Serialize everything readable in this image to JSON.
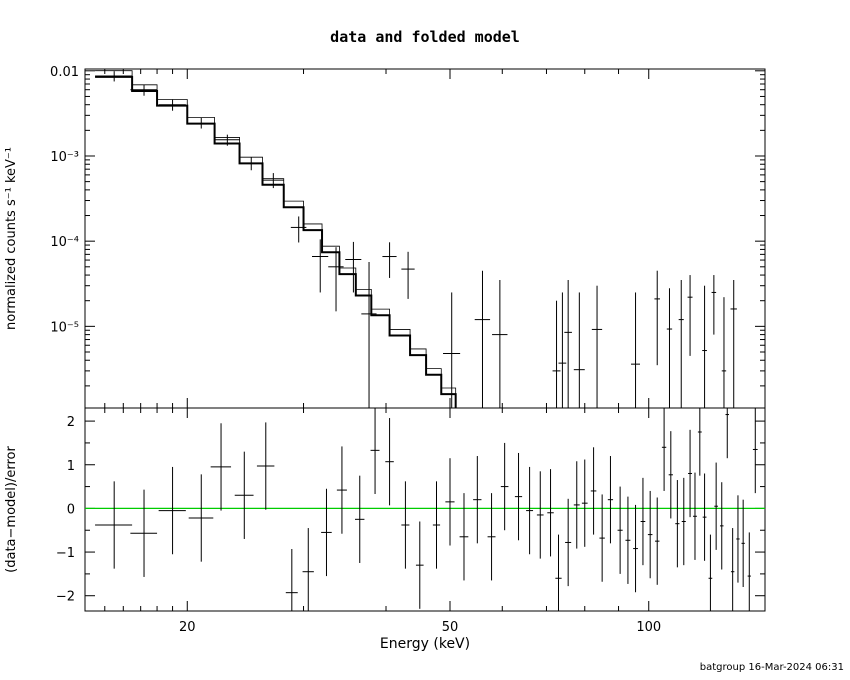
{
  "title": "data and folded model",
  "footer": "batgroup 16-Mar-2024 06:31",
  "chart_data": [
    {
      "type": "line",
      "panel": "top",
      "title": "data and folded model",
      "xlabel": "",
      "ylabel": "normalized counts s⁻¹ keV⁻¹",
      "xscale": "log",
      "yscale": "log",
      "xlim": [
        14,
        150
      ],
      "ylim": [
        1.1e-06,
        0.0105
      ],
      "yticks": [
        {
          "label": "0.01",
          "value": 0.01
        },
        {
          "label": "10⁻³",
          "value": 0.001
        },
        {
          "label": "10⁻⁴",
          "value": 0.0001
        },
        {
          "label": "10⁻⁵",
          "value": 1e-05
        }
      ],
      "model_steps": [
        {
          "x0": 14.5,
          "x1": 16.5,
          "y": 0.0085
        },
        {
          "x0": 16.5,
          "x1": 18.0,
          "y": 0.0058
        },
        {
          "x0": 18.0,
          "x1": 20.0,
          "y": 0.0039
        },
        {
          "x0": 20.0,
          "x1": 22.0,
          "y": 0.0024
        },
        {
          "x0": 22.0,
          "x1": 24.0,
          "y": 0.0014
        },
        {
          "x0": 24.0,
          "x1": 26.0,
          "y": 0.00082
        },
        {
          "x0": 26.0,
          "x1": 28.0,
          "y": 0.00046
        },
        {
          "x0": 28.0,
          "x1": 30.0,
          "y": 0.00025
        },
        {
          "x0": 30.0,
          "x1": 32.0,
          "y": 0.000135
        },
        {
          "x0": 32.0,
          "x1": 34.0,
          "y": 7.4e-05
        },
        {
          "x0": 34.0,
          "x1": 36.0,
          "y": 4.1e-05
        },
        {
          "x0": 36.0,
          "x1": 38.0,
          "y": 2.3e-05
        },
        {
          "x0": 38.0,
          "x1": 40.5,
          "y": 1.35e-05
        },
        {
          "x0": 40.5,
          "x1": 43.5,
          "y": 7.8e-06
        },
        {
          "x0": 43.5,
          "x1": 46.0,
          "y": 4.6e-06
        },
        {
          "x0": 46.0,
          "x1": 48.5,
          "y": 2.7e-06
        },
        {
          "x0": 48.5,
          "x1": 51.0,
          "y": 1.6e-06
        }
      ],
      "data_points": [
        {
          "x": 15.5,
          "xerr": 1.0,
          "y": 0.0087,
          "ylo": 0.0075,
          "yhi": 0.0099
        },
        {
          "x": 17.2,
          "xerr": 0.8,
          "y": 0.006,
          "ylo": 0.0051,
          "yhi": 0.0069
        },
        {
          "x": 19.0,
          "xerr": 0.9,
          "y": 0.004,
          "ylo": 0.0034,
          "yhi": 0.0046
        },
        {
          "x": 21.0,
          "xerr": 1.0,
          "y": 0.0024,
          "ylo": 0.0021,
          "yhi": 0.0028
        },
        {
          "x": 23.0,
          "xerr": 1.0,
          "y": 0.00155,
          "ylo": 0.00132,
          "yhi": 0.00178
        },
        {
          "x": 25.0,
          "xerr": 1.0,
          "y": 0.00082,
          "ylo": 0.00068,
          "yhi": 0.00097
        },
        {
          "x": 27.0,
          "xerr": 1.0,
          "y": 0.00052,
          "ylo": 0.00042,
          "yhi": 0.00063
        },
        {
          "x": 29.5,
          "xerr": 0.8,
          "y": 0.000145,
          "ylo": 9.65e-05,
          "yhi": 0.000195
        },
        {
          "x": 31.8,
          "xerr": 0.9,
          "y": 6.6e-05,
          "ylo": 2.5e-05,
          "yhi": 0.000105
        },
        {
          "x": 33.6,
          "xerr": 0.9,
          "y": 5e-05,
          "ylo": 1.5e-05,
          "yhi": 8.5e-05
        },
        {
          "x": 35.7,
          "xerr": 1.0,
          "y": 6.1e-05,
          "ylo": 2.5e-05,
          "yhi": 9.8e-05
        },
        {
          "x": 37.7,
          "xerr": 1.0,
          "y": 1.4e-05,
          "ylo": 1.1e-06,
          "yhi": 5.7e-05
        },
        {
          "x": 40.5,
          "xerr": 1.0,
          "y": 6.6e-05,
          "ylo": 3.7e-05,
          "yhi": 9.7e-05
        },
        {
          "x": 43.2,
          "xerr": 1.0,
          "y": 4.7e-05,
          "ylo": 2.1e-05,
          "yhi": 7.5e-05
        },
        {
          "x": 50.3,
          "xerr": 1.5,
          "y": 4.8e-06,
          "ylo": 1.1e-06,
          "yhi": 2.5e-05
        },
        {
          "x": 56.0,
          "xerr": 1.5,
          "y": 1.2e-05,
          "ylo": 1.1e-06,
          "yhi": 4.5e-05
        },
        {
          "x": 59.5,
          "xerr": 1.6,
          "y": 8e-06,
          "ylo": 1.1e-06,
          "yhi": 3.5e-05
        },
        {
          "x": 72.5,
          "xerr": 1.0,
          "y": 3e-06,
          "ylo": 1.1e-06,
          "yhi": 2e-05
        },
        {
          "x": 74.0,
          "xerr": 1.0,
          "y": 3.7e-06,
          "ylo": 1.1e-06,
          "yhi": 2.5e-05
        },
        {
          "x": 75.5,
          "xerr": 1.0,
          "y": 8.5e-06,
          "ylo": 1.1e-06,
          "yhi": 3.5e-05
        },
        {
          "x": 78.5,
          "xerr": 1.5,
          "y": 3.1e-06,
          "ylo": 1.1e-06,
          "yhi": 2.5e-05
        },
        {
          "x": 83.5,
          "xerr": 1.5,
          "y": 9.2e-06,
          "ylo": 1.1e-06,
          "yhi": 3e-05
        },
        {
          "x": 95.5,
          "xerr": 1.5,
          "y": 3.6e-06,
          "ylo": 1.1e-06,
          "yhi": 2.5e-05
        },
        {
          "x": 103.0,
          "xerr": 1.0,
          "y": 2.1e-05,
          "ylo": 3.5e-06,
          "yhi": 4.5e-05
        },
        {
          "x": 107.5,
          "xerr": 1.0,
          "y": 9.3e-06,
          "ylo": 1.1e-06,
          "yhi": 2.8e-05
        },
        {
          "x": 112.0,
          "xerr": 1.0,
          "y": 1.2e-05,
          "ylo": 1.1e-06,
          "yhi": 3.5e-05
        },
        {
          "x": 115.5,
          "xerr": 1.0,
          "y": 2.2e-05,
          "ylo": 4.5e-06,
          "yhi": 4e-05
        },
        {
          "x": 121.5,
          "xerr": 1.0,
          "y": 5.2e-06,
          "ylo": 1.1e-06,
          "yhi": 3e-05
        },
        {
          "x": 125.5,
          "xerr": 1.0,
          "y": 2.5e-05,
          "ylo": 8e-06,
          "yhi": 4e-05
        },
        {
          "x": 130.0,
          "xerr": 1.0,
          "y": 3e-06,
          "ylo": 1.1e-06,
          "yhi": 2.2e-05
        },
        {
          "x": 134.5,
          "xerr": 1.5,
          "y": 1.6e-05,
          "ylo": 1.1e-06,
          "yhi": 3.5e-05
        }
      ]
    },
    {
      "type": "scatter",
      "panel": "bottom",
      "xlabel": "Energy (keV)",
      "ylabel": "(data−model)/error",
      "xscale": "log",
      "xlim": [
        14,
        150
      ],
      "ylim": [
        -2.35,
        2.3
      ],
      "xticks": [
        {
          "label": "20",
          "value": 20
        },
        {
          "label": "50",
          "value": 50
        },
        {
          "label": "100",
          "value": 100
        }
      ],
      "yticks": [
        {
          "label": "2",
          "value": 2
        },
        {
          "label": "1",
          "value": 1
        },
        {
          "label": "0",
          "value": 0
        },
        {
          "label": "−1",
          "value": -1
        },
        {
          "label": "−2",
          "value": -2
        }
      ],
      "reference_line": {
        "y": 0,
        "color": "#00cc00"
      },
      "points": [
        {
          "x": 15.5,
          "xerr": 1.0,
          "y": -0.38,
          "yerr": 1.0
        },
        {
          "x": 17.2,
          "xerr": 0.8,
          "y": -0.57,
          "yerr": 1.0
        },
        {
          "x": 19.0,
          "xerr": 0.9,
          "y": -0.05,
          "yerr": 1.0
        },
        {
          "x": 21.0,
          "xerr": 0.9,
          "y": -0.22,
          "yerr": 1.0
        },
        {
          "x": 22.5,
          "xerr": 0.8,
          "y": 0.95,
          "yerr": 1.0
        },
        {
          "x": 24.4,
          "xerr": 0.8,
          "y": 0.3,
          "yerr": 1.0
        },
        {
          "x": 26.3,
          "xerr": 0.8,
          "y": 0.97,
          "yerr": 1.0
        },
        {
          "x": 28.8,
          "xerr": 0.6,
          "y": -1.93,
          "yerr": 1.0
        },
        {
          "x": 30.5,
          "xerr": 0.6,
          "y": -1.45,
          "yerr": 1.0
        },
        {
          "x": 32.5,
          "xerr": 0.6,
          "y": -0.55,
          "yerr": 1.0
        },
        {
          "x": 34.3,
          "xerr": 0.6,
          "y": 0.42,
          "yerr": 1.0
        },
        {
          "x": 36.5,
          "xerr": 0.6,
          "y": -0.25,
          "yerr": 1.0
        },
        {
          "x": 38.5,
          "xerr": 0.6,
          "y": 1.33,
          "yerr": 1.0
        },
        {
          "x": 40.5,
          "xerr": 0.6,
          "y": 1.07,
          "yerr": 1.0
        },
        {
          "x": 42.8,
          "xerr": 0.6,
          "y": -0.38,
          "yerr": 1.0
        },
        {
          "x": 45.0,
          "xerr": 0.6,
          "y": -1.3,
          "yerr": 1.0
        },
        {
          "x": 47.7,
          "xerr": 0.6,
          "y": -0.38,
          "yerr": 1.0
        },
        {
          "x": 50.0,
          "xerr": 0.8,
          "y": 0.15,
          "yerr": 1.0
        },
        {
          "x": 52.5,
          "xerr": 0.8,
          "y": -0.65,
          "yerr": 1.0
        },
        {
          "x": 55.0,
          "xerr": 0.8,
          "y": 0.2,
          "yerr": 1.0
        },
        {
          "x": 57.8,
          "xerr": 0.8,
          "y": -0.65,
          "yerr": 1.0
        },
        {
          "x": 60.5,
          "xerr": 0.8,
          "y": 0.5,
          "yerr": 1.0
        },
        {
          "x": 63.5,
          "xerr": 0.8,
          "y": 0.27,
          "yerr": 1.0
        },
        {
          "x": 66.0,
          "xerr": 0.8,
          "y": -0.05,
          "yerr": 1.0
        },
        {
          "x": 68.5,
          "xerr": 0.8,
          "y": -0.15,
          "yerr": 1.0
        },
        {
          "x": 71.0,
          "xerr": 0.8,
          "y": -0.1,
          "yerr": 1.0
        },
        {
          "x": 73.0,
          "xerr": 0.8,
          "y": -1.6,
          "yerr": 1.0
        },
        {
          "x": 75.5,
          "xerr": 0.8,
          "y": -0.78,
          "yerr": 1.0
        },
        {
          "x": 77.8,
          "xerr": 0.8,
          "y": 0.08,
          "yerr": 1.0
        },
        {
          "x": 80.0,
          "xerr": 0.8,
          "y": 0.12,
          "yerr": 1.0
        },
        {
          "x": 82.5,
          "xerr": 0.8,
          "y": 0.4,
          "yerr": 1.0
        },
        {
          "x": 85.0,
          "xerr": 0.8,
          "y": -0.68,
          "yerr": 1.0
        },
        {
          "x": 87.5,
          "xerr": 0.8,
          "y": 0.2,
          "yerr": 1.0
        },
        {
          "x": 90.5,
          "xerr": 0.8,
          "y": -0.5,
          "yerr": 1.0
        },
        {
          "x": 93.0,
          "xerr": 0.8,
          "y": -0.73,
          "yerr": 1.0
        },
        {
          "x": 95.5,
          "xerr": 0.8,
          "y": -0.92,
          "yerr": 1.0
        },
        {
          "x": 98.0,
          "xerr": 0.8,
          "y": -0.3,
          "yerr": 1.0
        },
        {
          "x": 100.5,
          "xerr": 0.8,
          "y": -0.6,
          "yerr": 1.0
        },
        {
          "x": 103.0,
          "xerr": 0.8,
          "y": -0.75,
          "yerr": 1.0
        },
        {
          "x": 105.5,
          "xerr": 0.8,
          "y": 1.4,
          "yerr": 1.0
        },
        {
          "x": 108.0,
          "xerr": 0.8,
          "y": 0.77,
          "yerr": 1.0
        },
        {
          "x": 110.5,
          "xerr": 0.8,
          "y": -0.35,
          "yerr": 1.0
        },
        {
          "x": 113.0,
          "xerr": 0.8,
          "y": -0.3,
          "yerr": 1.0
        },
        {
          "x": 115.5,
          "xerr": 0.8,
          "y": 0.8,
          "yerr": 1.0
        },
        {
          "x": 117.5,
          "xerr": 0.8,
          "y": -0.18,
          "yerr": 1.0
        },
        {
          "x": 119.5,
          "xerr": 0.8,
          "y": 1.75,
          "yerr": 1.0
        },
        {
          "x": 121.5,
          "xerr": 0.8,
          "y": -0.2,
          "yerr": 1.0
        },
        {
          "x": 124.0,
          "xerr": 0.8,
          "y": -1.6,
          "yerr": 1.0
        },
        {
          "x": 126.5,
          "xerr": 0.8,
          "y": 0.05,
          "yerr": 1.0
        },
        {
          "x": 129.0,
          "xerr": 0.8,
          "y": -0.4,
          "yerr": 1.0
        },
        {
          "x": 131.5,
          "xerr": 0.8,
          "y": 2.15,
          "yerr": 1.0
        },
        {
          "x": 134.0,
          "xerr": 0.8,
          "y": -1.45,
          "yerr": 1.0
        },
        {
          "x": 136.5,
          "xerr": 0.8,
          "y": -0.7,
          "yerr": 1.0
        },
        {
          "x": 139.0,
          "xerr": 0.8,
          "y": -0.8,
          "yerr": 1.0
        },
        {
          "x": 142.0,
          "xerr": 0.8,
          "y": -1.55,
          "yerr": 1.0
        },
        {
          "x": 145.0,
          "xerr": 1.2,
          "y": 1.35,
          "yerr": 1.0
        }
      ]
    }
  ]
}
